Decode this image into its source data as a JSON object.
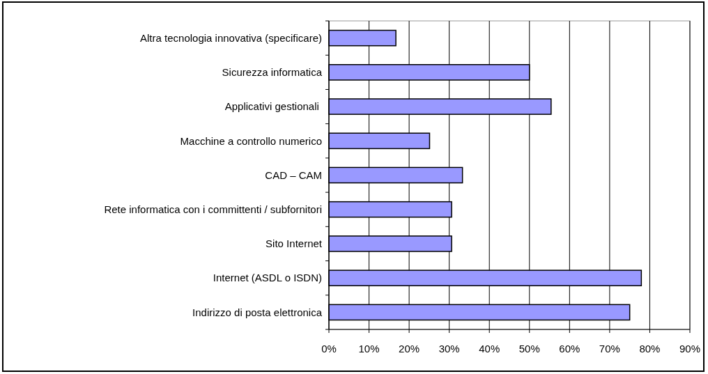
{
  "chart_data": {
    "type": "bar",
    "orientation": "horizontal",
    "categories": [
      "Altra tecnologia innovativa (specificare)",
      "Sicurezza informatica",
      "Applicativi gestionali ",
      "Macchine a controllo numerico",
      "CAD – CAM",
      "Rete informatica con i committenti / subfornitori",
      "Sito Internet",
      "Internet (ASDL o ISDN)",
      "Indirizzo di posta elettronica"
    ],
    "values": [
      16.7,
      50,
      55.4,
      25.1,
      33.3,
      30.6,
      30.6,
      77.9,
      75
    ],
    "color": "#9999ff",
    "xlim": [
      0,
      90
    ],
    "xticks": [
      {
        "value": 0,
        "label": "0%"
      },
      {
        "value": 10,
        "label": "10%"
      },
      {
        "value": 20,
        "label": "20%"
      },
      {
        "value": 30,
        "label": "30%"
      },
      {
        "value": 40,
        "label": "40%"
      },
      {
        "value": 50,
        "label": "50%"
      },
      {
        "value": 60,
        "label": "60%"
      },
      {
        "value": 70,
        "label": "70%"
      },
      {
        "value": 80,
        "label": "80%"
      },
      {
        "value": 90,
        "label": "90%"
      }
    ],
    "grid": "x"
  }
}
